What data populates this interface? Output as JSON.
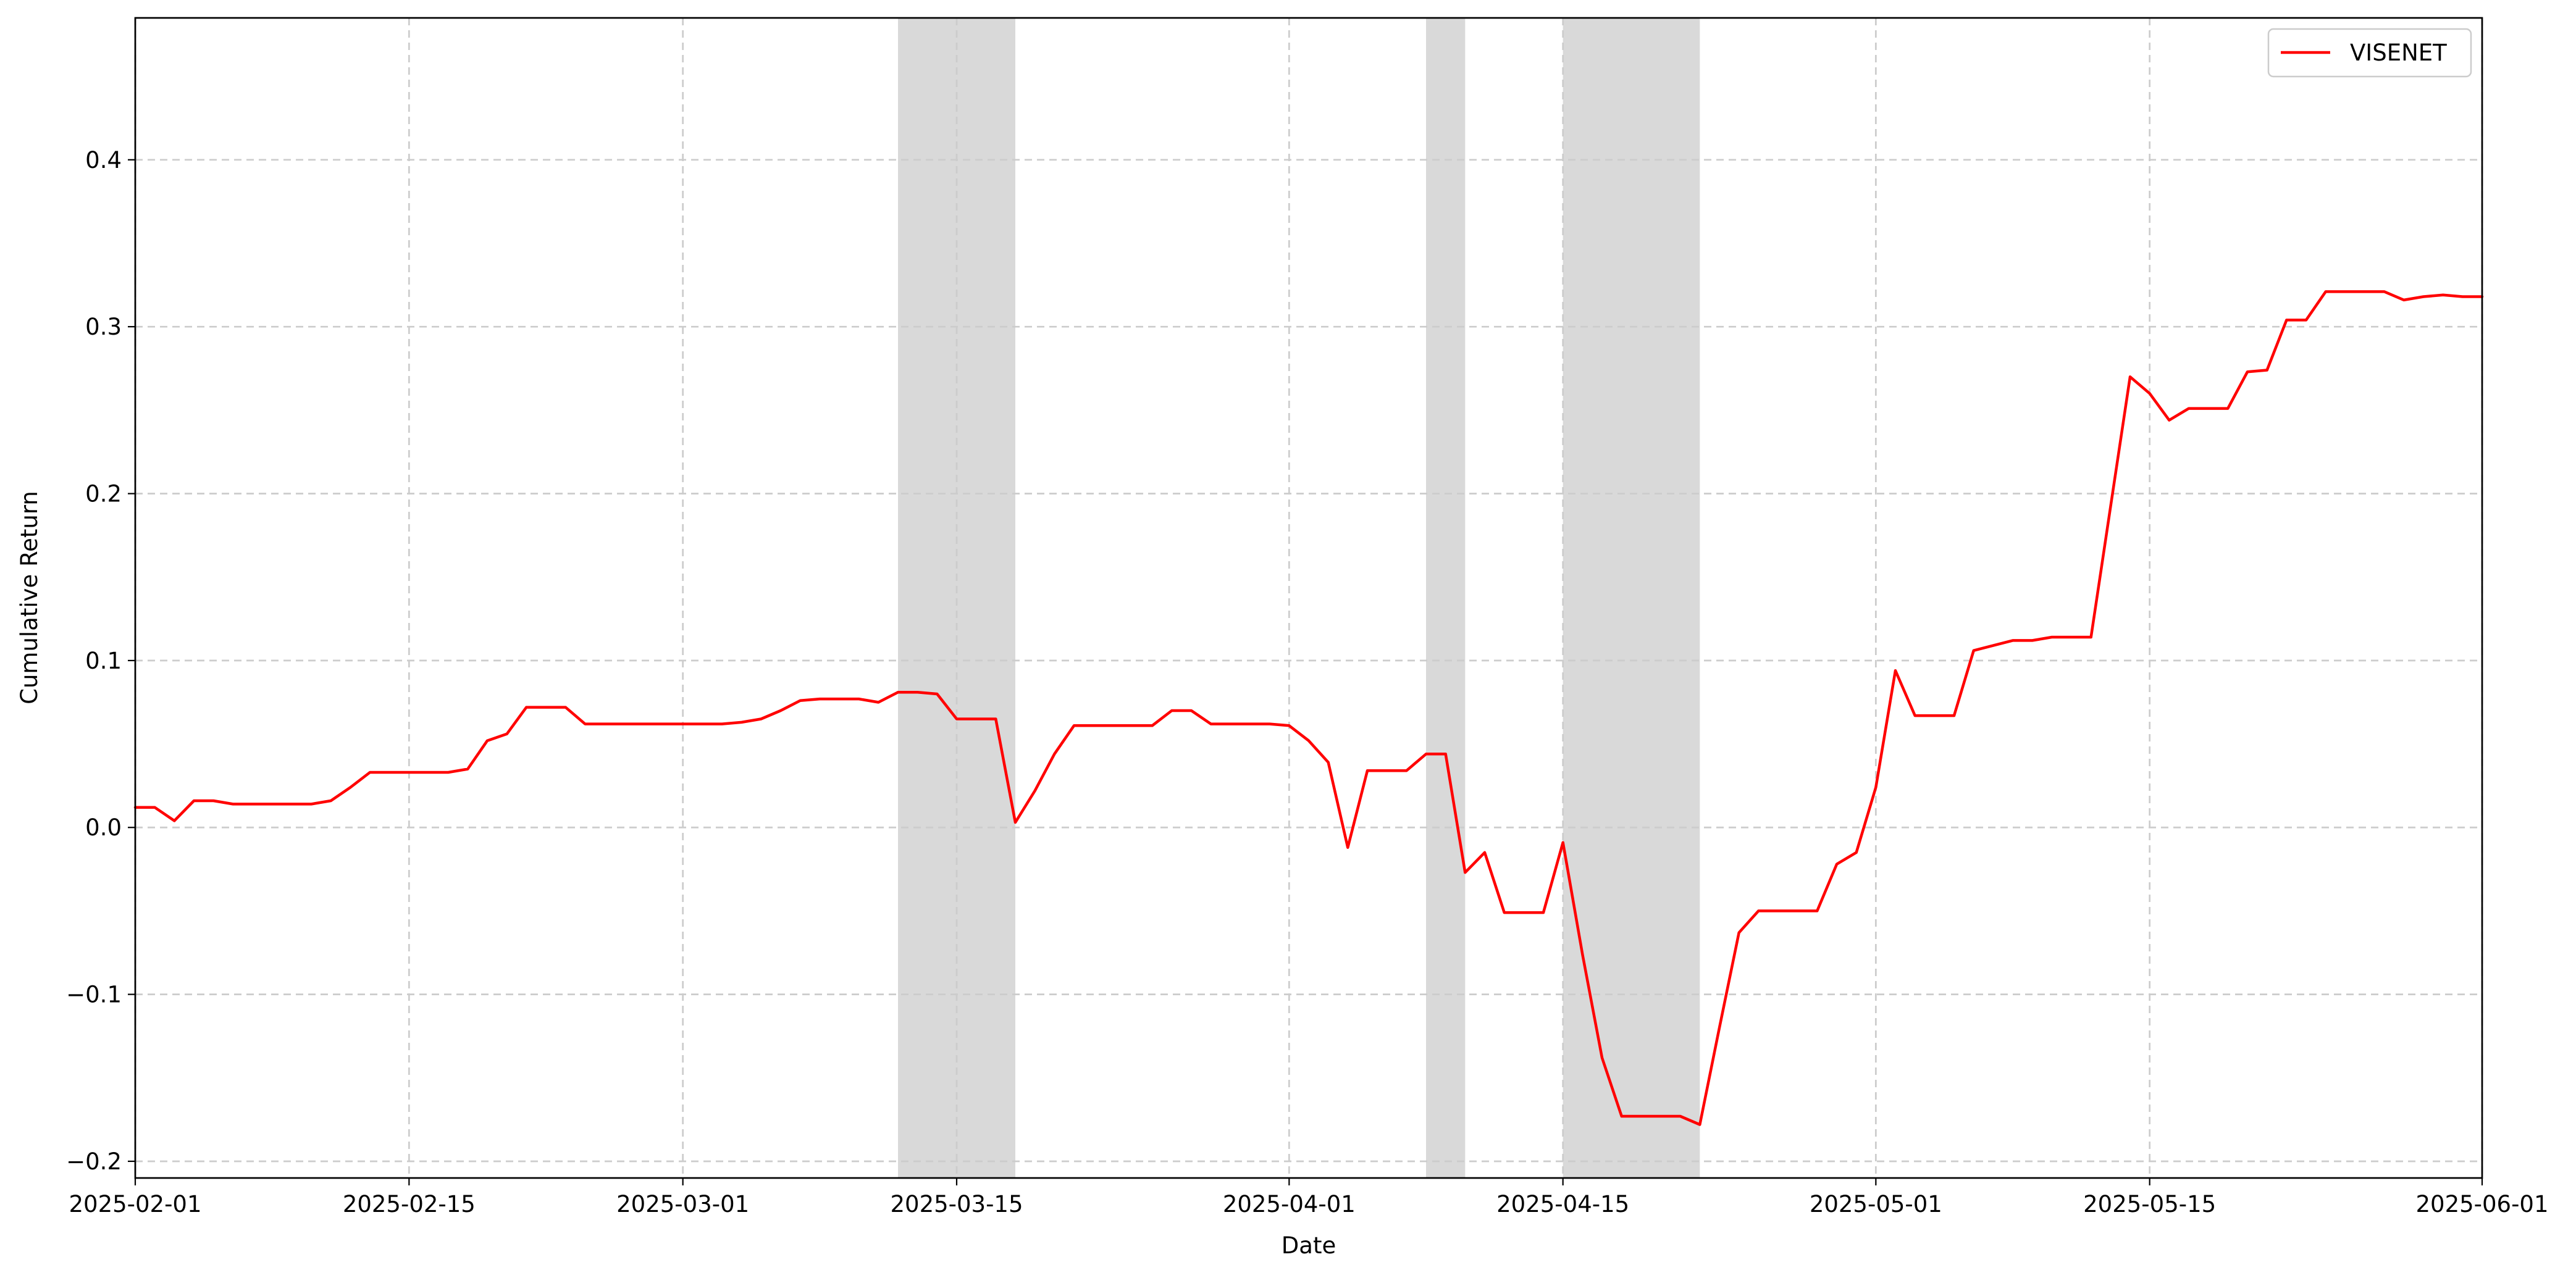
{
  "chart_data": {
    "type": "line",
    "title": "",
    "xlabel": "Date",
    "ylabel": "Cumulative Return",
    "x_range": [
      "2025-02-01",
      "2025-06-01"
    ],
    "ylim": [
      -0.21,
      0.485
    ],
    "grid": true,
    "legend": {
      "placement": "top-right",
      "entries": [
        "VISENET"
      ]
    },
    "colors": {
      "line": "#ff0000",
      "shade": "#bfbfbf"
    },
    "x_ticks": [
      "2025-02-01",
      "2025-02-15",
      "2025-03-01",
      "2025-03-15",
      "2025-04-01",
      "2025-04-15",
      "2025-05-01",
      "2025-05-15",
      "2025-06-01"
    ],
    "y_ticks": [
      {
        "value": -0.2,
        "label": "−0.2"
      },
      {
        "value": -0.1,
        "label": "−0.1"
      },
      {
        "value": 0.0,
        "label": "0.0"
      },
      {
        "value": 0.1,
        "label": "0.1"
      },
      {
        "value": 0.2,
        "label": "0.2"
      },
      {
        "value": 0.3,
        "label": "0.3"
      },
      {
        "value": 0.4,
        "label": "0.4"
      }
    ],
    "shaded_periods": [
      {
        "start": "2025-03-12",
        "end": "2025-03-18"
      },
      {
        "start": "2025-04-08",
        "end": "2025-04-10"
      },
      {
        "start": "2025-04-15",
        "end": "2025-04-22"
      }
    ],
    "series": [
      {
        "name": "VISENET",
        "x": [
          "2025-02-01",
          "2025-02-02",
          "2025-02-03",
          "2025-02-04",
          "2025-02-05",
          "2025-02-06",
          "2025-02-07",
          "2025-02-08",
          "2025-02-09",
          "2025-02-10",
          "2025-02-11",
          "2025-02-12",
          "2025-02-13",
          "2025-02-14",
          "2025-02-15",
          "2025-02-16",
          "2025-02-17",
          "2025-02-18",
          "2025-02-19",
          "2025-02-20",
          "2025-02-21",
          "2025-02-22",
          "2025-02-23",
          "2025-02-24",
          "2025-02-25",
          "2025-02-26",
          "2025-02-27",
          "2025-02-28",
          "2025-03-01",
          "2025-03-02",
          "2025-03-03",
          "2025-03-04",
          "2025-03-05",
          "2025-03-06",
          "2025-03-07",
          "2025-03-08",
          "2025-03-09",
          "2025-03-10",
          "2025-03-11",
          "2025-03-12",
          "2025-03-13",
          "2025-03-14",
          "2025-03-15",
          "2025-03-16",
          "2025-03-17",
          "2025-03-18",
          "2025-03-19",
          "2025-03-20",
          "2025-03-21",
          "2025-03-22",
          "2025-03-23",
          "2025-03-24",
          "2025-03-25",
          "2025-03-26",
          "2025-03-27",
          "2025-03-28",
          "2025-03-29",
          "2025-03-30",
          "2025-03-31",
          "2025-04-01",
          "2025-04-02",
          "2025-04-03",
          "2025-04-04",
          "2025-04-05",
          "2025-04-06",
          "2025-04-07",
          "2025-04-08",
          "2025-04-09",
          "2025-04-10",
          "2025-04-11",
          "2025-04-12",
          "2025-04-13",
          "2025-04-14",
          "2025-04-15",
          "2025-04-16",
          "2025-04-17",
          "2025-04-18",
          "2025-04-19",
          "2025-04-20",
          "2025-04-21",
          "2025-04-22",
          "2025-04-23",
          "2025-04-24",
          "2025-04-25",
          "2025-04-26",
          "2025-04-27",
          "2025-04-28",
          "2025-04-29",
          "2025-04-30",
          "2025-05-01",
          "2025-05-02",
          "2025-05-03",
          "2025-05-04",
          "2025-05-05",
          "2025-05-06",
          "2025-05-07",
          "2025-05-08",
          "2025-05-09",
          "2025-05-10",
          "2025-05-11",
          "2025-05-12",
          "2025-05-13",
          "2025-05-14",
          "2025-05-15",
          "2025-05-16",
          "2025-05-17",
          "2025-05-18",
          "2025-05-19",
          "2025-05-20",
          "2025-05-21",
          "2025-05-22",
          "2025-05-23",
          "2025-05-24",
          "2025-05-25",
          "2025-05-26",
          "2025-05-27",
          "2025-05-28",
          "2025-05-29",
          "2025-05-30",
          "2025-05-31",
          "2025-06-01"
        ],
        "y": [
          0.012,
          0.012,
          0.004,
          0.016,
          0.016,
          0.014,
          0.014,
          0.014,
          0.014,
          0.014,
          0.016,
          0.024,
          0.033,
          0.033,
          0.033,
          0.033,
          0.033,
          0.035,
          0.052,
          0.056,
          0.072,
          0.072,
          0.072,
          0.062,
          0.062,
          0.062,
          0.062,
          0.062,
          0.062,
          0.062,
          0.062,
          0.063,
          0.065,
          0.07,
          0.076,
          0.077,
          0.077,
          0.077,
          0.075,
          0.081,
          0.081,
          0.08,
          0.065,
          0.065,
          0.065,
          0.003,
          0.022,
          0.044,
          0.061,
          0.061,
          0.061,
          0.061,
          0.061,
          0.07,
          0.07,
          0.062,
          0.062,
          0.062,
          0.062,
          0.061,
          0.052,
          0.039,
          -0.012,
          0.034,
          0.034,
          0.034,
          0.044,
          0.044,
          -0.027,
          -0.015,
          -0.051,
          -0.051,
          -0.051,
          -0.009,
          -0.076,
          -0.138,
          -0.173,
          -0.173,
          -0.173,
          -0.173,
          -0.178,
          -0.12,
          -0.063,
          -0.05,
          -0.05,
          -0.05,
          -0.05,
          -0.022,
          -0.015,
          0.024,
          0.094,
          0.067,
          0.067,
          0.067,
          0.106,
          0.109,
          0.112,
          0.112,
          0.114,
          0.114,
          0.114,
          0.192,
          0.27,
          0.26,
          0.244,
          0.251,
          0.251,
          0.251,
          0.273,
          0.274,
          0.304,
          0.304,
          0.321,
          0.321,
          0.321,
          0.321,
          0.316,
          0.318,
          0.319,
          0.318,
          0.318
        ]
      }
    ]
  }
}
